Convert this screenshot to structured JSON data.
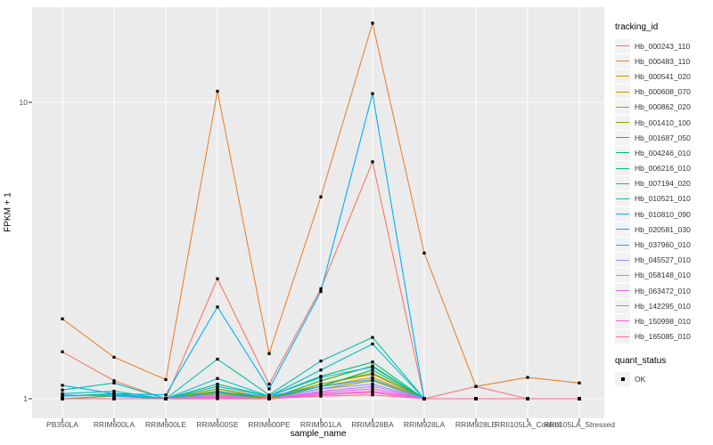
{
  "chart_data": {
    "type": "line",
    "title": "",
    "xlabel": "sample_name",
    "ylabel": "FPKM + 1",
    "y_scale": "log10",
    "y_ticks": [
      1,
      10
    ],
    "ylim": [
      0.95,
      21
    ],
    "grid": "major white gridlines on gray panel",
    "legend_position": "right",
    "legend_title": "tracking_id",
    "quant_legend": {
      "title": "quant_status",
      "items": [
        "OK"
      ]
    },
    "point_marker": "small black square",
    "categories": [
      "PB350LA",
      "RRIM600LA",
      "RRIM600LE",
      "RRIM600SE",
      "RRIM600PE",
      "RRIM901LA",
      "RRIM928BA",
      "RRIM928LA",
      "RRIM928LE",
      "RRII105LA_Control",
      "RRII105LA_Stressed"
    ],
    "series": [
      {
        "name": "Hb_000243_110",
        "color": "#F8766D",
        "values": [
          1.44,
          1.15,
          1.0,
          2.54,
          1.12,
          2.35,
          6.3,
          1.0,
          1.1,
          1.0,
          1.0
        ]
      },
      {
        "name": "Hb_000483_110",
        "color": "#EA8331",
        "values": [
          1.86,
          1.38,
          1.16,
          10.9,
          1.42,
          4.8,
          18.5,
          3.1,
          1.1,
          1.18,
          1.13
        ]
      },
      {
        "name": "Hb_000541_020",
        "color": "#D89000",
        "values": [
          1.0,
          1.02,
          1.0,
          1.08,
          1.01,
          1.12,
          1.21,
          1.0,
          1.0,
          1.0,
          1.0
        ]
      },
      {
        "name": "Hb_000608_070",
        "color": "#C09B00",
        "values": [
          1.0,
          1.0,
          1.0,
          1.06,
          1.0,
          1.1,
          1.18,
          1.0,
          1.0,
          1.0,
          1.0
        ]
      },
      {
        "name": "Hb_000862_020",
        "color": "#A3A500",
        "values": [
          1.0,
          1.0,
          1.0,
          1.04,
          1.0,
          1.08,
          1.15,
          1.0,
          1.0,
          1.0,
          1.0
        ]
      },
      {
        "name": "Hb_001410_100",
        "color": "#7CAE00",
        "values": [
          1.0,
          1.02,
          1.0,
          1.08,
          1.0,
          1.12,
          1.22,
          1.0,
          1.0,
          1.0,
          1.0
        ]
      },
      {
        "name": "Hb_001687_050",
        "color": "#39B600",
        "values": [
          1.0,
          1.0,
          1.0,
          1.06,
          1.0,
          1.15,
          1.29,
          1.0,
          1.0,
          1.0,
          1.0
        ]
      },
      {
        "name": "Hb_004246_010",
        "color": "#00BB4E",
        "values": [
          1.0,
          1.0,
          1.0,
          1.05,
          1.0,
          1.1,
          1.25,
          1.0,
          1.0,
          1.0,
          1.0
        ]
      },
      {
        "name": "Hb_006216_010",
        "color": "#00BF7D",
        "values": [
          1.02,
          1.04,
          1.0,
          1.12,
          1.02,
          1.19,
          1.33,
          1.0,
          1.0,
          1.0,
          1.0
        ]
      },
      {
        "name": "Hb_007194_020",
        "color": "#00C1A3",
        "values": [
          1.07,
          1.13,
          1.0,
          1.36,
          1.03,
          1.34,
          1.61,
          1.0,
          1.0,
          1.0,
          1.0
        ]
      },
      {
        "name": "Hb_010521_010",
        "color": "#00BFC4",
        "values": [
          1.04,
          1.06,
          1.0,
          1.17,
          1.02,
          1.25,
          1.53,
          1.0,
          1.0,
          1.0,
          1.0
        ]
      },
      {
        "name": "Hb_010810_090",
        "color": "#00BAE0",
        "values": [
          1.02,
          1.03,
          1.0,
          1.1,
          1.02,
          1.18,
          1.28,
          1.0,
          1.0,
          1.0,
          1.0
        ]
      },
      {
        "name": "Hb_020581_030",
        "color": "#00B0F6",
        "values": [
          1.11,
          1.04,
          1.03,
          2.04,
          1.08,
          2.3,
          10.7,
          1.0,
          1.0,
          1.0,
          1.0
        ]
      },
      {
        "name": "Hb_037960_010",
        "color": "#35A2FF",
        "values": [
          1.03,
          1.02,
          1.0,
          1.05,
          1.02,
          1.1,
          1.16,
          1.0,
          1.0,
          1.0,
          1.0
        ]
      },
      {
        "name": "Hb_045527_010",
        "color": "#9590FF",
        "values": [
          1.0,
          1.0,
          1.0,
          1.03,
          1.0,
          1.08,
          1.12,
          1.0,
          1.0,
          1.0,
          1.0
        ]
      },
      {
        "name": "Hb_058148_010",
        "color": "#C77CFF",
        "values": [
          1.0,
          1.0,
          1.0,
          1.02,
          1.0,
          1.06,
          1.1,
          1.0,
          1.0,
          1.0,
          1.0
        ]
      },
      {
        "name": "Hb_063472_010",
        "color": "#E76BF3",
        "values": [
          1.0,
          1.0,
          1.0,
          1.02,
          1.0,
          1.05,
          1.08,
          1.0,
          1.0,
          1.0,
          1.0
        ]
      },
      {
        "name": "Hb_142295_010",
        "color": "#FA62DB",
        "values": [
          1.0,
          1.0,
          1.0,
          1.01,
          1.0,
          1.04,
          1.06,
          1.0,
          1.0,
          1.0,
          1.0
        ]
      },
      {
        "name": "Hb_150998_010",
        "color": "#FF62BC",
        "values": [
          1.0,
          1.0,
          1.0,
          1.01,
          1.0,
          1.03,
          1.05,
          1.0,
          1.0,
          1.0,
          1.0
        ]
      },
      {
        "name": "Hb_165085_010",
        "color": "#FF6A98",
        "values": [
          1.0,
          1.0,
          1.0,
          1.0,
          1.0,
          1.02,
          1.03,
          1.0,
          1.0,
          1.0,
          1.0
        ]
      }
    ]
  },
  "colors": {
    "panel_bg": "#EBEBEB",
    "gridline": "#FFFFFF",
    "tick_mark": "#333333",
    "tick_label": "#4D4D4D",
    "axis_title": "#000000",
    "legend_key_bg": "#F2F2F2",
    "point": "#000000"
  }
}
